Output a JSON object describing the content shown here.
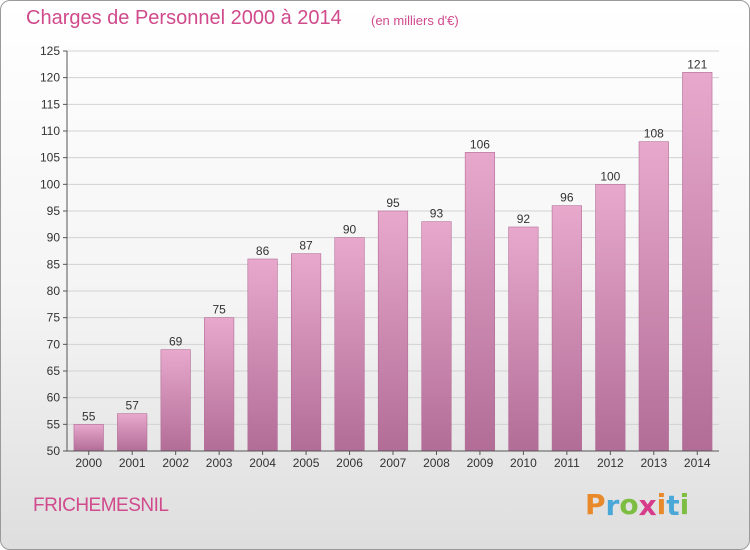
{
  "title": "Charges de Personnel 2000 à 2014",
  "subtitle": "(en milliers d'€)",
  "place": "FRICHEMESNIL",
  "logo": {
    "letters": [
      "P",
      "r",
      "o",
      "x",
      "i",
      "t",
      "i"
    ],
    "colors": [
      "#e8892b",
      "#4aa8d8",
      "#7cbd42",
      "#d63c8a",
      "#e8892b",
      "#4aa8d8",
      "#7cbd42"
    ]
  },
  "colors": {
    "bar_top": "#e8a8cc",
    "bar_bottom": "#b26d97",
    "accent": "#d04a8c"
  },
  "chart_data": {
    "type": "bar",
    "title": "Charges de Personnel 2000 à 2014",
    "subtitle": "(en milliers d'€)",
    "categories": [
      "2000",
      "2001",
      "2002",
      "2003",
      "2004",
      "2005",
      "2006",
      "2007",
      "2008",
      "2009",
      "2010",
      "2011",
      "2012",
      "2013",
      "2014"
    ],
    "values": [
      55,
      57,
      69,
      75,
      86,
      87,
      90,
      95,
      93,
      106,
      92,
      96,
      100,
      108,
      121
    ],
    "ylim": [
      50,
      125
    ],
    "yticks": [
      50,
      55,
      60,
      65,
      70,
      75,
      80,
      85,
      90,
      95,
      100,
      105,
      110,
      115,
      120,
      125
    ],
    "grid": true,
    "data_labels": true
  }
}
